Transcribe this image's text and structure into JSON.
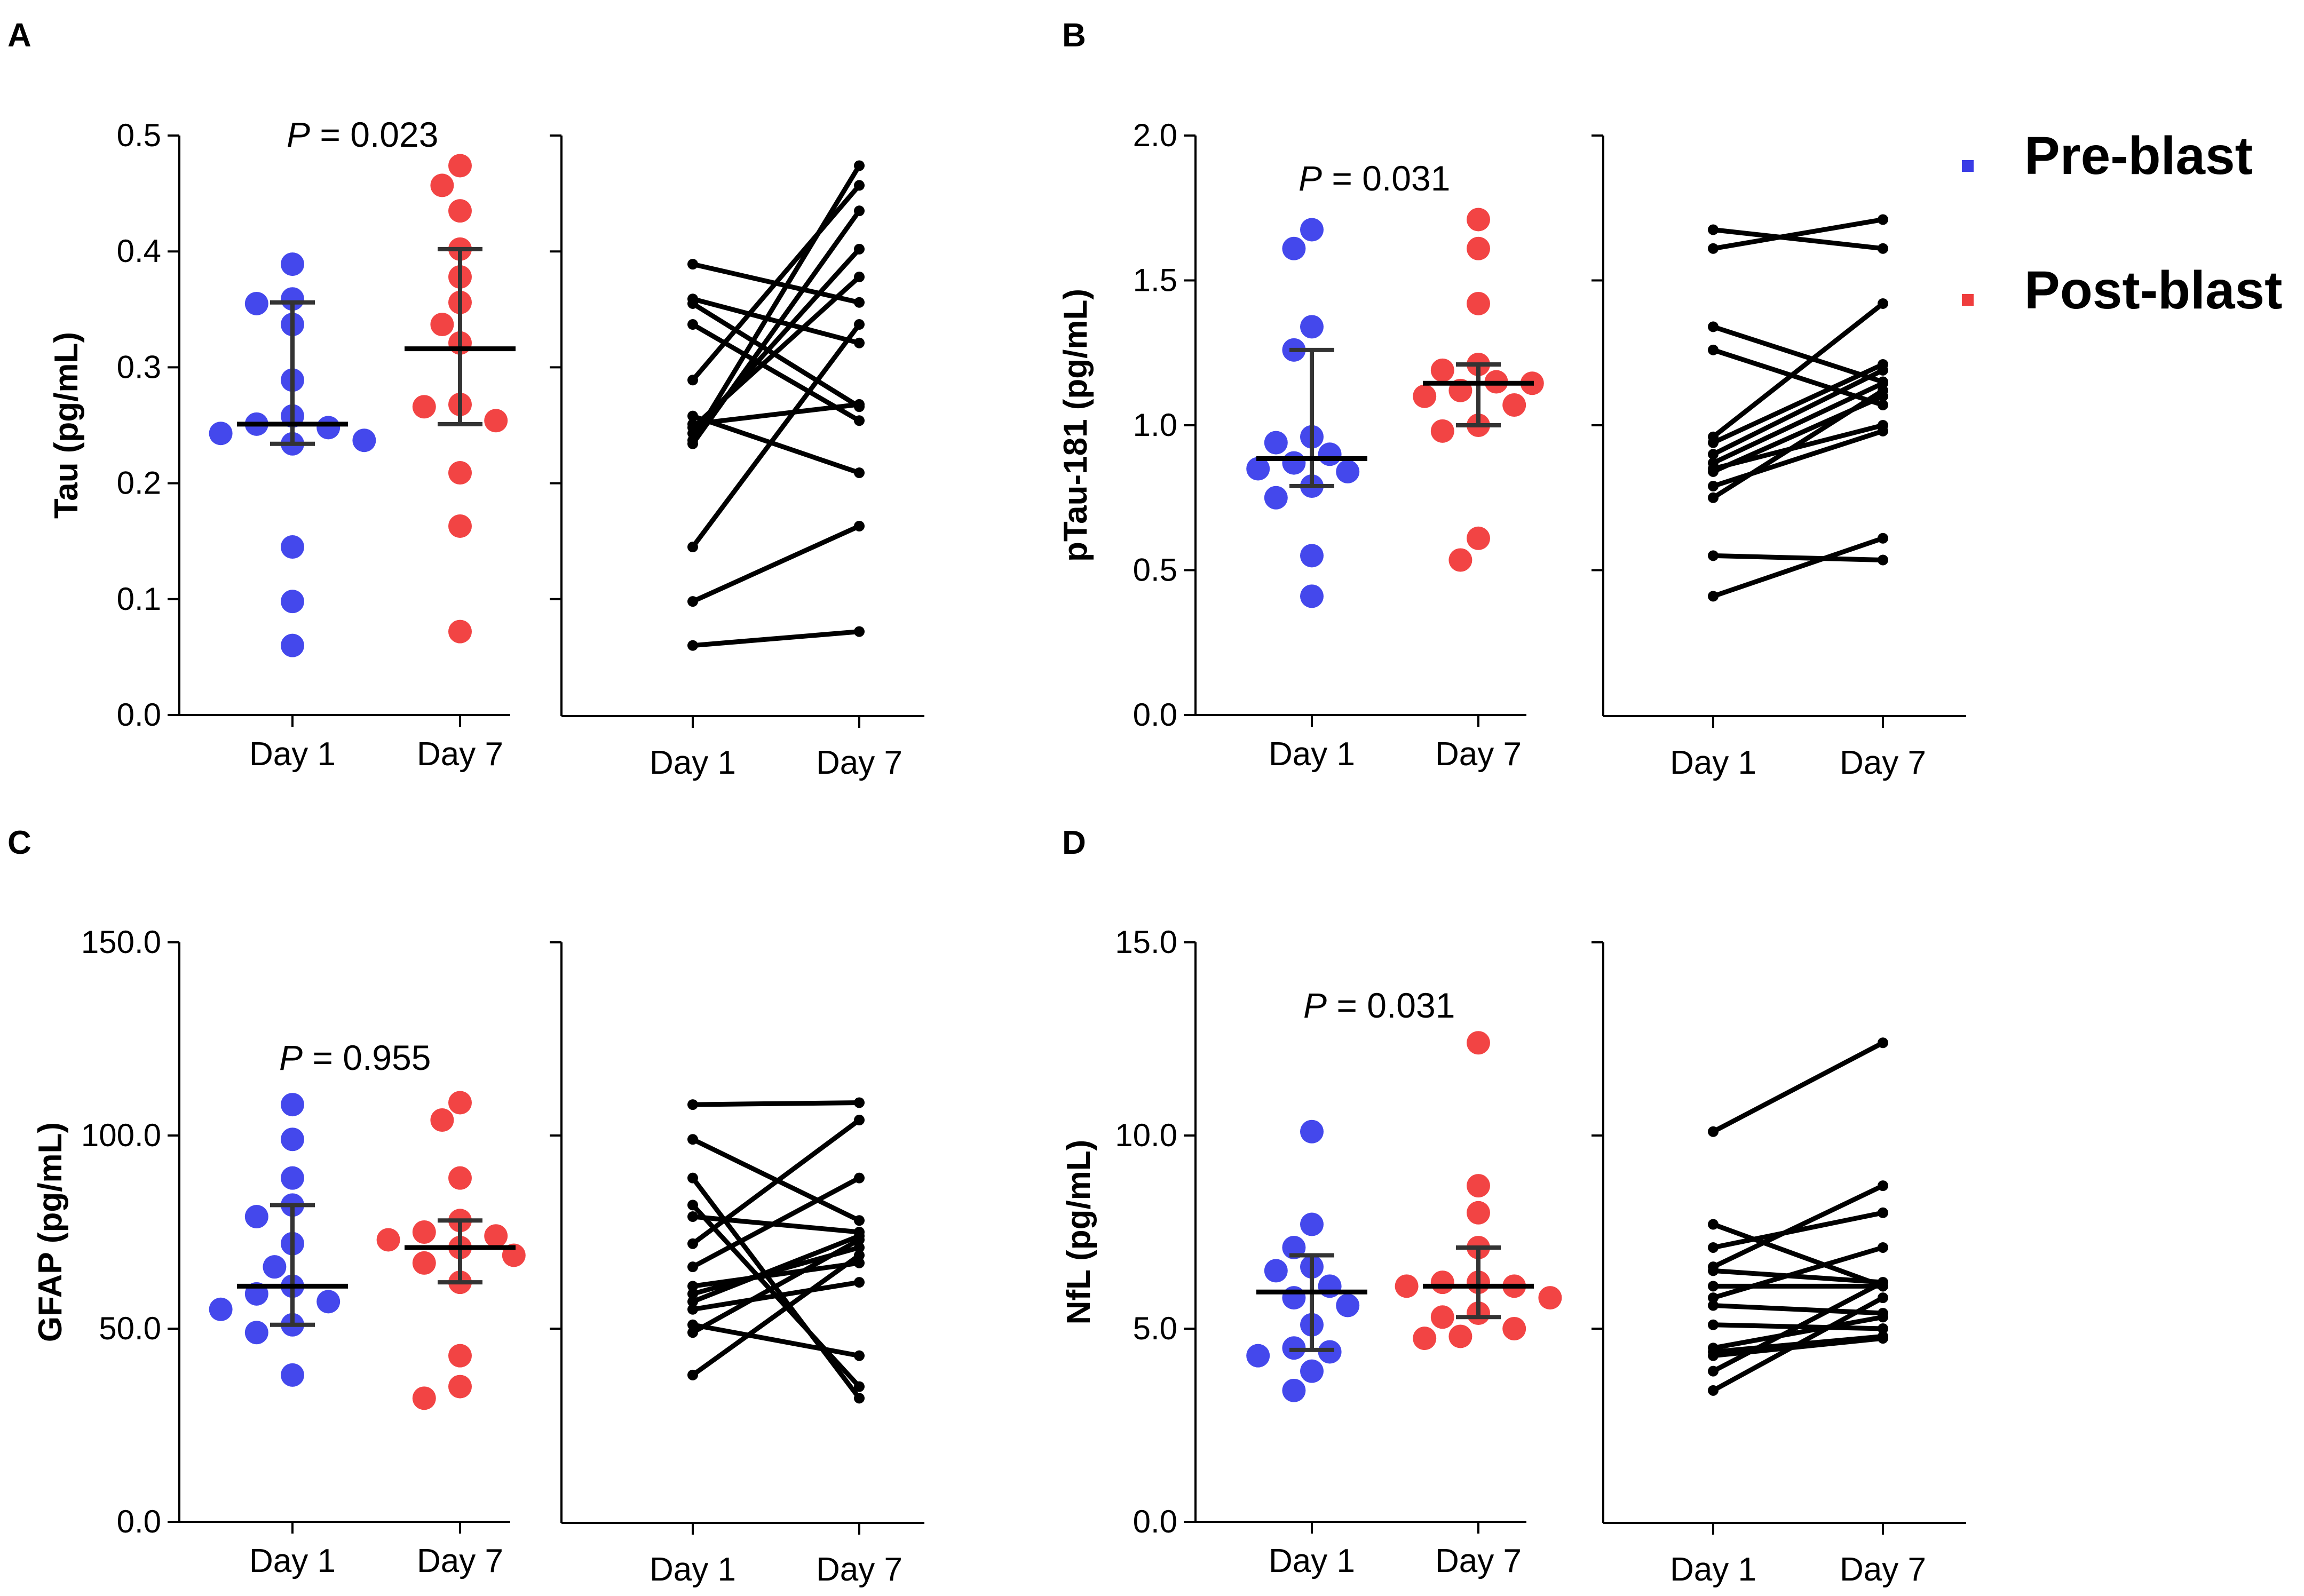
{
  "legend": {
    "items": [
      {
        "label": "Pre-blast",
        "color": "#3a3ce6"
      },
      {
        "label": "Post-blast",
        "color": "#ef3d3d"
      }
    ]
  },
  "colors": {
    "pre": "#4448ec",
    "post": "#f24444",
    "bar": "#333333",
    "line": "#000000"
  },
  "chart_data": [
    {
      "panel": "A",
      "type": "scatter",
      "ylabel": "Tau (pg/mL)",
      "categories": [
        "Day 1",
        "Day 7"
      ],
      "ylim": [
        0,
        0.5
      ],
      "yticks": [
        0,
        0.1,
        0.2,
        0.3,
        0.4,
        0.5
      ],
      "ytick_labels": [
        "0.0",
        "0.1",
        "0.2",
        "0.3",
        "0.4",
        "0.5"
      ],
      "p_value": "= 0.023",
      "median": [
        0.251,
        0.316
      ],
      "iqr": [
        [
          0.234,
          0.356
        ],
        [
          0.251,
          0.402
        ]
      ],
      "paired": [
        [
          0.389,
          0.356
        ],
        [
          0.359,
          0.321
        ],
        [
          0.355,
          0.266
        ],
        [
          0.337,
          0.254
        ],
        [
          0.289,
          0.457
        ],
        [
          0.258,
          0.209
        ],
        [
          0.251,
          0.268
        ],
        [
          0.248,
          0.378
        ],
        [
          0.243,
          0.402
        ],
        [
          0.237,
          0.474
        ],
        [
          0.234,
          0.435
        ],
        [
          0.145,
          0.337
        ],
        [
          0.098,
          0.163
        ],
        [
          0.06,
          0.072
        ]
      ]
    },
    {
      "panel": "B",
      "type": "scatter",
      "ylabel": "pTau-181 (pg/mL)",
      "categories": [
        "Day 1",
        "Day 7"
      ],
      "ylim": [
        0,
        2.0
      ],
      "yticks": [
        0,
        0.5,
        1.0,
        1.5,
        2.0
      ],
      "ytick_labels": [
        "0.0",
        "0.5",
        "1.0",
        "1.5",
        "2.0"
      ],
      "p_value": "= 0.031",
      "median": [
        0.885,
        1.145
      ],
      "iqr": [
        [
          0.79,
          1.26
        ],
        [
          1.0,
          1.21
        ]
      ],
      "paired": [
        [
          1.675,
          1.61
        ],
        [
          1.61,
          1.71
        ],
        [
          1.34,
          1.15
        ],
        [
          1.26,
          1.07
        ],
        [
          0.96,
          1.42
        ],
        [
          0.94,
          1.21
        ],
        [
          0.9,
          1.19
        ],
        [
          0.87,
          1.145
        ],
        [
          0.85,
          1.0
        ],
        [
          0.84,
          1.1
        ],
        [
          0.79,
          0.98
        ],
        [
          0.75,
          1.12
        ],
        [
          0.55,
          0.535
        ],
        [
          0.41,
          0.61
        ]
      ]
    },
    {
      "panel": "C",
      "type": "scatter",
      "ylabel": "GFAP (pg/mL)",
      "categories": [
        "Day 1",
        "Day 7"
      ],
      "ylim": [
        0,
        150
      ],
      "yticks": [
        0,
        50,
        100,
        150
      ],
      "ytick_labels": [
        "0.0",
        "50.0",
        "100.0",
        "150.0"
      ],
      "p_value": "= 0.955",
      "median": [
        61,
        71
      ],
      "iqr": [
        [
          51,
          82
        ],
        [
          62,
          78
        ]
      ],
      "paired": [
        [
          108,
          108.5
        ],
        [
          99,
          78
        ],
        [
          89,
          32
        ],
        [
          82,
          35
        ],
        [
          79,
          75
        ],
        [
          72,
          104
        ],
        [
          66,
          89
        ],
        [
          61,
          67
        ],
        [
          59,
          71
        ],
        [
          57,
          74
        ],
        [
          55,
          62
        ],
        [
          51,
          43
        ],
        [
          49,
          73
        ],
        [
          38,
          69
        ]
      ]
    },
    {
      "panel": "D",
      "type": "scatter",
      "ylabel": "NfL (pg/mL)",
      "categories": [
        "Day 1",
        "Day 7"
      ],
      "ylim": [
        0,
        15.0
      ],
      "yticks": [
        0,
        5,
        10,
        15
      ],
      "ytick_labels": [
        "0.0",
        "5.0",
        "10.0",
        "15.0"
      ],
      "p_value": "= 0.031",
      "median": [
        5.95,
        6.1
      ],
      "iqr": [
        [
          4.45,
          6.9
        ],
        [
          5.3,
          7.1
        ]
      ],
      "paired": [
        [
          10.1,
          12.4
        ],
        [
          7.7,
          6.1
        ],
        [
          7.1,
          8.0
        ],
        [
          6.6,
          8.7
        ],
        [
          6.5,
          6.2
        ],
        [
          6.1,
          6.1
        ],
        [
          5.8,
          7.1
        ],
        [
          5.6,
          5.4
        ],
        [
          5.1,
          5.0
        ],
        [
          4.5,
          5.3
        ],
        [
          4.4,
          4.8
        ],
        [
          4.3,
          4.75
        ],
        [
          3.9,
          6.2
        ],
        [
          3.4,
          5.8
        ]
      ]
    }
  ]
}
